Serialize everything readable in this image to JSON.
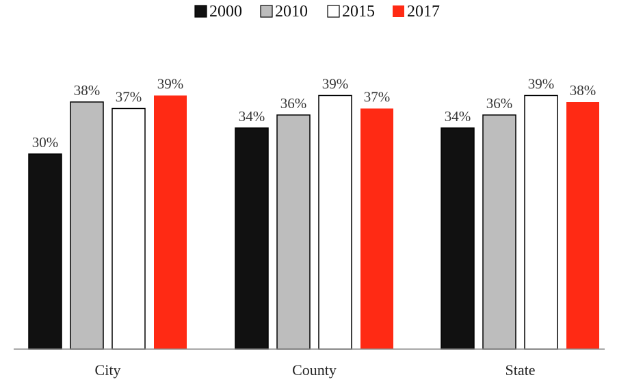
{
  "chart_data": {
    "type": "bar",
    "categories": [
      "City",
      "County",
      "State"
    ],
    "series": [
      {
        "name": "2000",
        "values": [
          30,
          34,
          34
        ],
        "color": "#111111"
      },
      {
        "name": "2010",
        "values": [
          38,
          36,
          36
        ],
        "color": "#bdbdbd"
      },
      {
        "name": "2015",
        "values": [
          37,
          39,
          39
        ],
        "color": "#ffffff"
      },
      {
        "name": "2017",
        "values": [
          39,
          37,
          38
        ],
        "color": "#ff2a14"
      }
    ],
    "value_format": "%",
    "ylim": [
      0,
      45
    ],
    "grid": false,
    "legend_position": "top-center",
    "title": "",
    "xlabel": "",
    "ylabel": ""
  }
}
